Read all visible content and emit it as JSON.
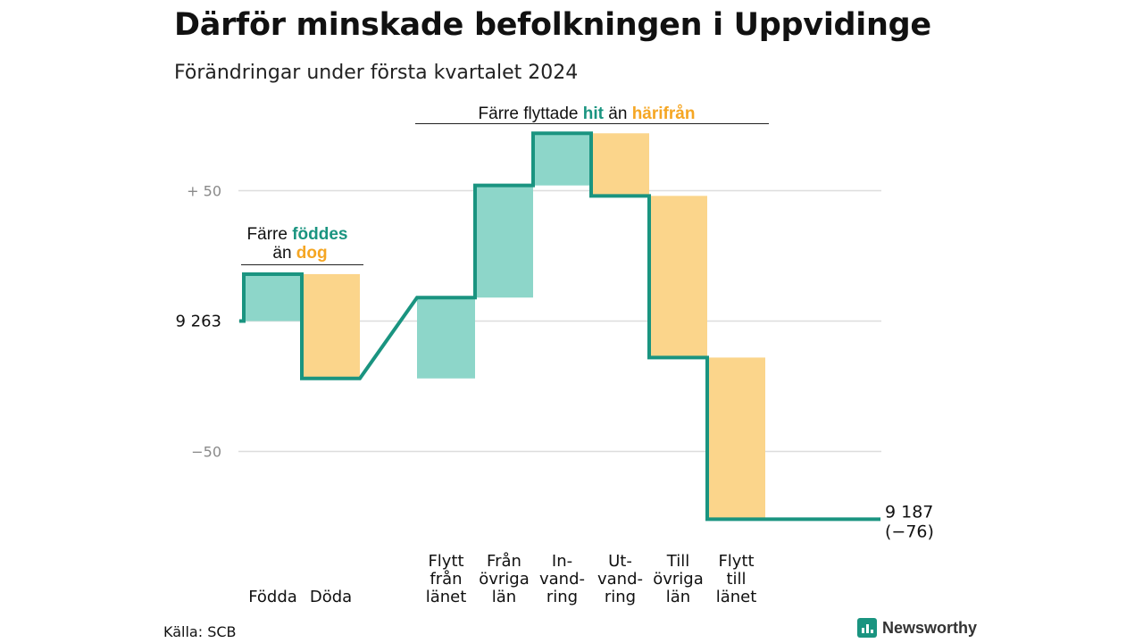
{
  "header": {
    "title": "Därför minskade befolkningen i Uppvidinge",
    "subtitle": "Förändringar under första kvartalet 2024"
  },
  "footer": {
    "source": "Källa: SCB",
    "brand": "Newsworthy",
    "brand_icon": "newsworthy-logo-icon"
  },
  "colors": {
    "increase": "#8dd6c9",
    "decrease": "#fbd58b",
    "line": "#1a9480",
    "accent_teal": "#1a9480",
    "accent_orange": "#f5a623",
    "grid": "#dddddd",
    "brand": "#1a9480"
  },
  "annotations": {
    "births": {
      "line1_prefix": "Färre",
      "line1_highlight": "föddes",
      "line2_prefix": "än",
      "line2_highlight": "dog"
    },
    "migration": {
      "prefix": "Färre flyttade",
      "highlight1": "hit",
      "middle": "än",
      "highlight2": "härifrån"
    }
  },
  "chart_data": {
    "type": "waterfall",
    "title": "Därför minskade befolkningen i Uppvidinge",
    "subtitle": "Förändringar under första kvartalet 2024",
    "start_value": 9263,
    "start_label": "9 263",
    "end_value": 9187,
    "end_label": "9 187",
    "end_change_label": "(−76)",
    "yticks": [
      {
        "offset": 50,
        "label": "+ 50"
      },
      {
        "offset": 0,
        "label": "9 263"
      },
      {
        "offset": -50,
        "label": "−50"
      }
    ],
    "ylim": [
      -80,
      74
    ],
    "categories": [
      {
        "lines": [
          "Födda"
        ],
        "change": 18
      },
      {
        "lines": [
          "Döda"
        ],
        "change": -40
      },
      {
        "lines": [
          "Flytt",
          "från",
          "länet"
        ],
        "change": 31
      },
      {
        "lines": [
          "Från",
          "övriga",
          "län"
        ],
        "change": 43
      },
      {
        "lines": [
          "In-",
          "vand-",
          "ring"
        ],
        "change": 20
      },
      {
        "lines": [
          "Ut-",
          "vand-",
          "ring"
        ],
        "change": -24
      },
      {
        "lines": [
          "Till",
          "övriga",
          "län"
        ],
        "change": -62
      },
      {
        "lines": [
          "Flytt",
          "till",
          "länet"
        ],
        "change": -62
      }
    ],
    "grid": true,
    "legend": "none"
  }
}
